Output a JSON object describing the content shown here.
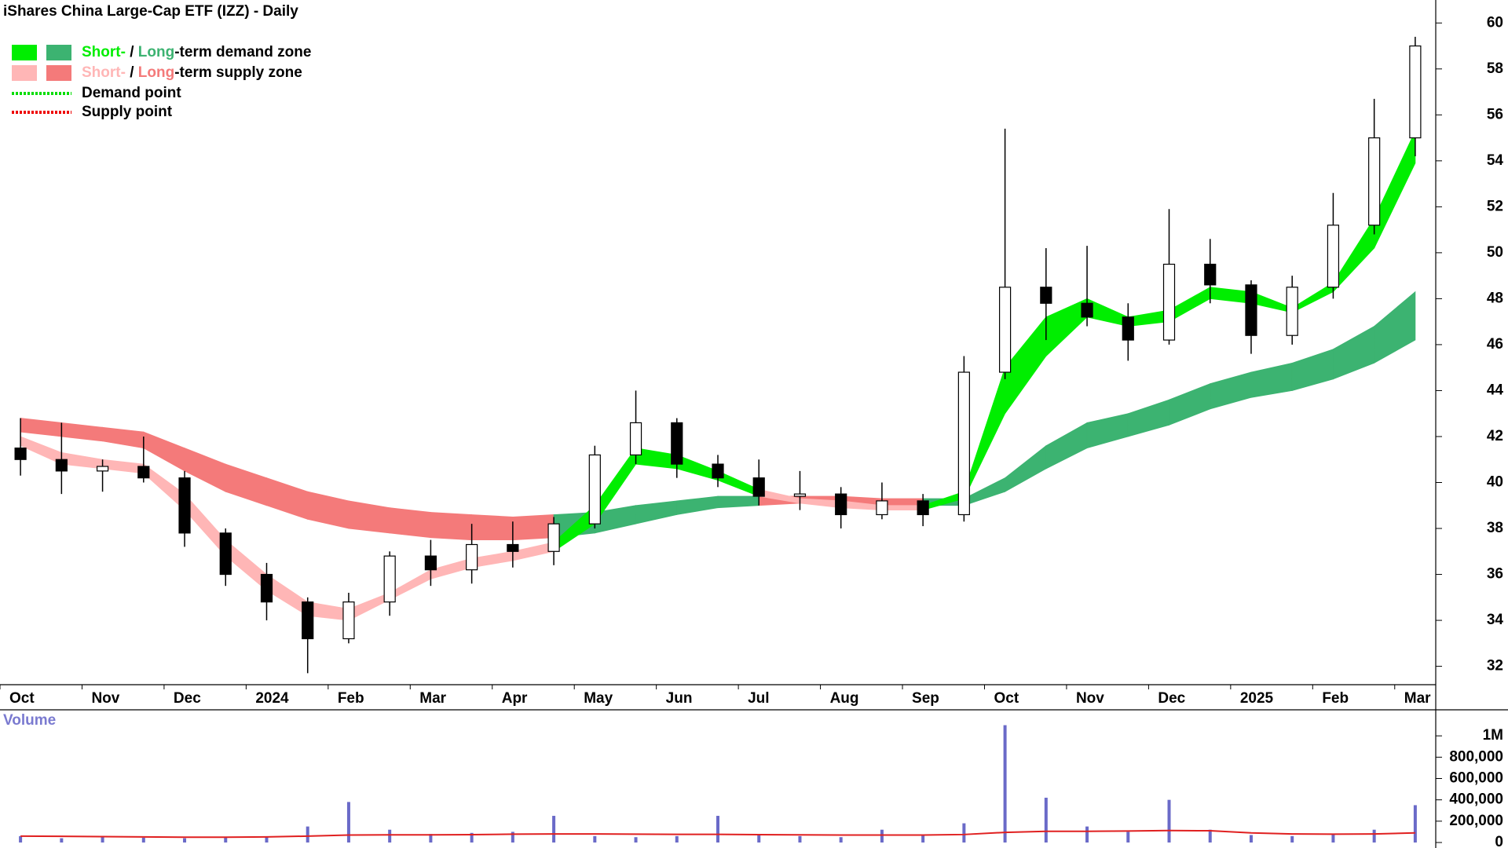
{
  "chart_data": [
    {
      "type": "candlestick",
      "title": "iShares China Large-Cap ETF (IZZ) - Daily",
      "categories": [
        "Oct",
        null,
        "Nov",
        null,
        "Dec",
        null,
        "2024",
        null,
        "Feb",
        null,
        "Mar",
        null,
        "Apr",
        null,
        "May",
        null,
        "Jun",
        null,
        "Jul",
        null,
        "Aug",
        null,
        "Sep",
        null,
        "Oct",
        null,
        "Nov",
        null,
        "Dec",
        null,
        "2025",
        null,
        "Feb",
        null,
        "Mar"
      ],
      "open": [
        41.5,
        41.0,
        40.5,
        40.7,
        40.2,
        37.8,
        36.0,
        34.8,
        33.2,
        34.8,
        36.8,
        36.2,
        37.3,
        37.0,
        38.2,
        41.2,
        42.6,
        40.8,
        40.2,
        39.4,
        39.5,
        38.6,
        39.2,
        38.6,
        44.8,
        48.5,
        47.8,
        47.2,
        46.2,
        49.5,
        48.6,
        46.4,
        48.5,
        51.2,
        55.0
      ],
      "high": [
        42.8,
        42.6,
        41.0,
        42.0,
        40.5,
        38.0,
        36.5,
        35.0,
        35.2,
        37.0,
        37.5,
        38.2,
        38.3,
        38.5,
        41.6,
        44.0,
        42.8,
        41.2,
        41.0,
        40.5,
        39.8,
        40.0,
        39.5,
        45.5,
        55.4,
        50.2,
        50.3,
        47.8,
        51.9,
        50.6,
        48.8,
        49.0,
        52.6,
        56.7,
        59.4
      ],
      "low": [
        40.3,
        39.5,
        39.6,
        40.0,
        37.2,
        35.5,
        34.0,
        31.7,
        33.0,
        34.2,
        35.5,
        35.6,
        36.3,
        36.4,
        38.0,
        40.8,
        40.2,
        39.8,
        39.0,
        38.8,
        38.0,
        38.4,
        38.1,
        38.3,
        44.5,
        46.2,
        46.8,
        45.3,
        46.0,
        47.8,
        45.6,
        46.0,
        48.0,
        50.8,
        54.2
      ],
      "close": [
        41.0,
        40.5,
        40.7,
        40.2,
        37.8,
        36.0,
        34.8,
        33.2,
        34.8,
        36.8,
        36.2,
        37.3,
        37.0,
        38.2,
        41.2,
        42.6,
        40.8,
        40.2,
        39.4,
        39.5,
        38.6,
        39.2,
        38.6,
        44.8,
        48.5,
        47.8,
        47.2,
        46.2,
        49.5,
        48.6,
        46.4,
        48.5,
        51.2,
        55.0,
        59.0
      ],
      "short_upper": [
        42.0,
        41.3,
        41.0,
        40.8,
        39.5,
        37.5,
        36.0,
        34.8,
        34.5,
        35.2,
        36.2,
        36.7,
        37.0,
        37.4,
        39.0,
        41.5,
        41.2,
        40.5,
        39.7,
        39.3,
        39.2,
        39.0,
        39.0,
        39.6,
        45.0,
        47.2,
        48.0,
        47.2,
        47.5,
        48.5,
        48.3,
        47.6,
        48.7,
        51.5,
        55.3
      ],
      "short_lower": [
        41.6,
        40.8,
        40.6,
        40.4,
        38.8,
        36.8,
        35.3,
        34.2,
        34.0,
        34.9,
        35.8,
        36.3,
        36.6,
        37.0,
        38.2,
        40.8,
        40.6,
        40.1,
        39.4,
        39.1,
        38.9,
        38.8,
        38.8,
        39.3,
        43.0,
        45.5,
        47.2,
        46.8,
        47.0,
        48.0,
        47.8,
        47.4,
        48.3,
        50.2,
        53.9
      ],
      "long_upper": [
        42.8,
        42.6,
        42.4,
        42.2,
        41.5,
        40.8,
        40.2,
        39.6,
        39.2,
        38.9,
        38.7,
        38.6,
        38.5,
        38.6,
        38.7,
        39.0,
        39.2,
        39.4,
        39.4,
        39.4,
        39.4,
        39.3,
        39.3,
        39.3,
        40.2,
        41.6,
        42.6,
        43.0,
        43.6,
        44.3,
        44.8,
        45.2,
        45.8,
        46.8,
        48.3
      ],
      "long_lower": [
        42.2,
        42.0,
        41.8,
        41.5,
        40.5,
        39.6,
        39.0,
        38.4,
        38.0,
        37.8,
        37.6,
        37.5,
        37.5,
        37.6,
        37.8,
        38.2,
        38.6,
        38.9,
        39.0,
        39.1,
        39.1,
        39.0,
        39.0,
        39.0,
        39.6,
        40.6,
        41.5,
        42.0,
        42.5,
        43.2,
        43.7,
        44.0,
        44.5,
        45.2,
        46.2
      ],
      "ylim": [
        31.2,
        61
      ],
      "yticks": [
        32,
        34,
        36,
        38,
        40,
        42,
        44,
        46,
        48,
        50,
        52,
        54,
        56,
        58,
        60
      ],
      "legend": [
        {
          "colors": [
            "#00ee00",
            "#3cb371"
          ],
          "parts": [
            "Short-",
            " / ",
            "Long",
            "-term demand zone"
          ]
        },
        {
          "colors": [
            "#ffb6b6",
            "#f47a7a"
          ],
          "parts": [
            "Short-",
            " / ",
            "Long",
            "-term supply zone"
          ]
        },
        {
          "line_color": "#00dd00",
          "label": "Demand point"
        },
        {
          "line_color": "#ee0000",
          "label": "Supply point"
        }
      ]
    },
    {
      "type": "bar",
      "title": "Volume",
      "color": "#6a6ac8",
      "average_color": "#e02020",
      "values": [
        60000,
        40000,
        50000,
        45000,
        40000,
        45000,
        50000,
        150000,
        380000,
        120000,
        80000,
        90000,
        100000,
        250000,
        60000,
        50000,
        60000,
        250000,
        80000,
        60000,
        50000,
        120000,
        70000,
        180000,
        1100000,
        420000,
        150000,
        100000,
        400000,
        120000,
        70000,
        60000,
        80000,
        120000,
        350000
      ],
      "average": [
        60000,
        58000,
        55000,
        52000,
        50000,
        50000,
        52000,
        60000,
        70000,
        72000,
        72000,
        74000,
        78000,
        80000,
        80000,
        78000,
        76000,
        76000,
        74000,
        72000,
        70000,
        70000,
        70000,
        75000,
        95000,
        105000,
        105000,
        108000,
        112000,
        110000,
        90000,
        80000,
        78000,
        80000,
        90000
      ],
      "ylim": [
        0,
        1200000
      ],
      "yticks": [
        0,
        {
          "value": 200000,
          "label": "200,000"
        },
        {
          "value": 400000,
          "label": "400,000"
        },
        {
          "value": 600000,
          "label": "600,000"
        },
        {
          "value": 800000,
          "label": "800,000"
        },
        {
          "value": 1000000,
          "label": "1M"
        }
      ]
    }
  ]
}
